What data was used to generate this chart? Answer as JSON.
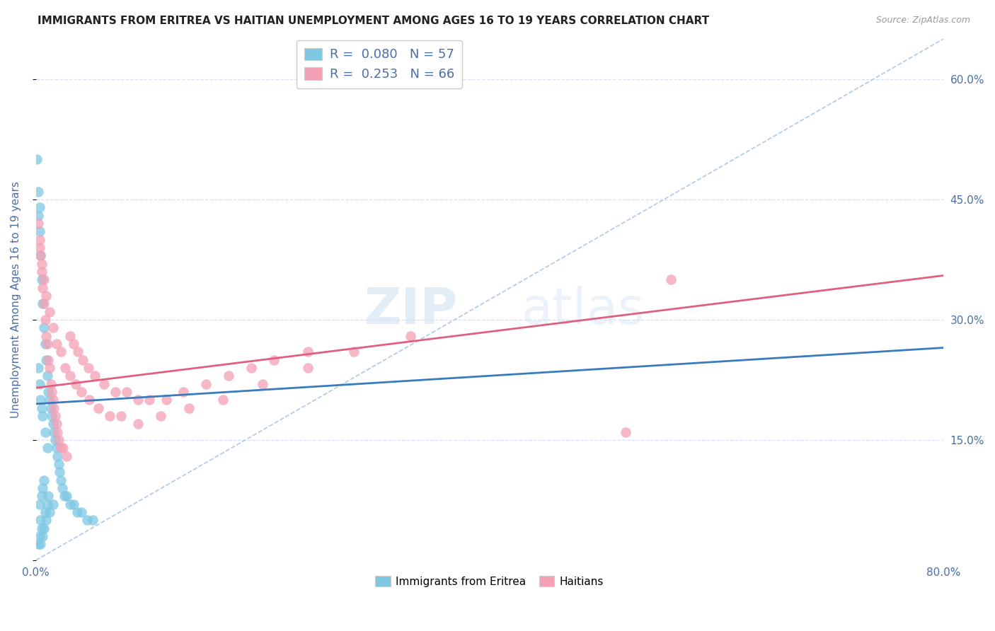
{
  "title": "IMMIGRANTS FROM ERITREA VS HAITIAN UNEMPLOYMENT AMONG AGES 16 TO 19 YEARS CORRELATION CHART",
  "source": "Source: ZipAtlas.com",
  "ylabel": "Unemployment Among Ages 16 to 19 years",
  "xlim": [
    0.0,
    0.8
  ],
  "ylim": [
    0.0,
    0.65
  ],
  "watermark_zip": "ZIP",
  "watermark_atlas": "atlas",
  "legend_eritrea_R": "0.080",
  "legend_eritrea_N": "57",
  "legend_haitian_R": "0.253",
  "legend_haitian_N": "66",
  "blue_color": "#7ec8e3",
  "pink_color": "#f4a0b5",
  "blue_line_color": "#3a7bbf",
  "pink_line_color": "#e06080",
  "dashed_line_color": "#b0c8e8",
  "title_color": "#222222",
  "axis_label_color": "#4a6fa5",
  "tick_label_color": "#4a6fa5",
  "grid_color": "#d8dff0",
  "background_color": "#ffffff",
  "blue_x": [
    0.001,
    0.002,
    0.002,
    0.002,
    0.003,
    0.003,
    0.003,
    0.003,
    0.004,
    0.004,
    0.004,
    0.005,
    0.005,
    0.005,
    0.006,
    0.006,
    0.006,
    0.007,
    0.007,
    0.007,
    0.008,
    0.008,
    0.009,
    0.009,
    0.01,
    0.01,
    0.011,
    0.011,
    0.012,
    0.012,
    0.013,
    0.014,
    0.015,
    0.015,
    0.016,
    0.017,
    0.018,
    0.019,
    0.02,
    0.021,
    0.022,
    0.023,
    0.025,
    0.027,
    0.03,
    0.033,
    0.036,
    0.04,
    0.045,
    0.05,
    0.002,
    0.003,
    0.004,
    0.005,
    0.006,
    0.008,
    0.01
  ],
  "blue_y": [
    0.5,
    0.46,
    0.43,
    0.02,
    0.44,
    0.41,
    0.07,
    0.03,
    0.38,
    0.05,
    0.02,
    0.35,
    0.08,
    0.04,
    0.32,
    0.09,
    0.03,
    0.29,
    0.1,
    0.04,
    0.27,
    0.06,
    0.25,
    0.05,
    0.23,
    0.07,
    0.21,
    0.08,
    0.2,
    0.06,
    0.19,
    0.18,
    0.17,
    0.07,
    0.16,
    0.15,
    0.14,
    0.13,
    0.12,
    0.11,
    0.1,
    0.09,
    0.08,
    0.08,
    0.07,
    0.07,
    0.06,
    0.06,
    0.05,
    0.05,
    0.24,
    0.22,
    0.2,
    0.19,
    0.18,
    0.16,
    0.14
  ],
  "pink_x": [
    0.002,
    0.003,
    0.004,
    0.005,
    0.006,
    0.007,
    0.008,
    0.009,
    0.01,
    0.011,
    0.012,
    0.013,
    0.014,
    0.015,
    0.016,
    0.017,
    0.018,
    0.019,
    0.02,
    0.022,
    0.024,
    0.027,
    0.03,
    0.033,
    0.037,
    0.041,
    0.046,
    0.052,
    0.06,
    0.07,
    0.08,
    0.09,
    0.1,
    0.115,
    0.13,
    0.15,
    0.17,
    0.19,
    0.21,
    0.24,
    0.003,
    0.005,
    0.007,
    0.009,
    0.012,
    0.015,
    0.018,
    0.022,
    0.026,
    0.03,
    0.035,
    0.04,
    0.047,
    0.055,
    0.065,
    0.075,
    0.09,
    0.11,
    0.135,
    0.165,
    0.2,
    0.24,
    0.28,
    0.33,
    0.52,
    0.56
  ],
  "pink_y": [
    0.42,
    0.4,
    0.38,
    0.36,
    0.34,
    0.32,
    0.3,
    0.28,
    0.27,
    0.25,
    0.24,
    0.22,
    0.21,
    0.2,
    0.19,
    0.18,
    0.17,
    0.16,
    0.15,
    0.14,
    0.14,
    0.13,
    0.28,
    0.27,
    0.26,
    0.25,
    0.24,
    0.23,
    0.22,
    0.21,
    0.21,
    0.2,
    0.2,
    0.2,
    0.21,
    0.22,
    0.23,
    0.24,
    0.25,
    0.26,
    0.39,
    0.37,
    0.35,
    0.33,
    0.31,
    0.29,
    0.27,
    0.26,
    0.24,
    0.23,
    0.22,
    0.21,
    0.2,
    0.19,
    0.18,
    0.18,
    0.17,
    0.18,
    0.19,
    0.2,
    0.22,
    0.24,
    0.26,
    0.28,
    0.16,
    0.35
  ],
  "blue_trend_x": [
    0.0,
    0.8
  ],
  "blue_trend_y": [
    0.195,
    0.265
  ],
  "pink_trend_x": [
    0.0,
    0.8
  ],
  "pink_trend_y": [
    0.215,
    0.355
  ]
}
